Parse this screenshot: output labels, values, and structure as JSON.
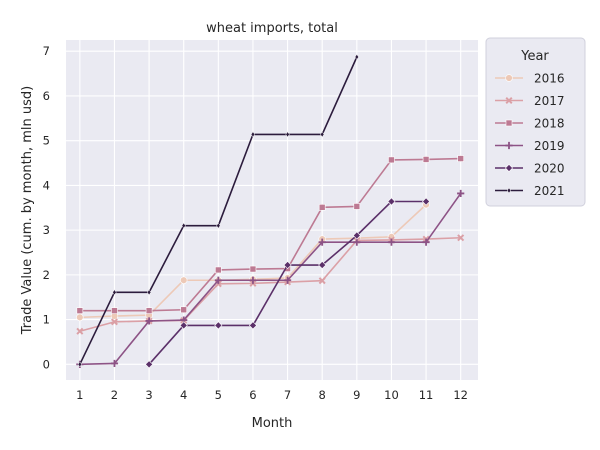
{
  "chart_data": {
    "type": "line",
    "title": "wheat imports, total",
    "xlabel": "Month",
    "ylabel": "Trade Value (cum. by month, mln usd)",
    "x_ticks": [
      1,
      2,
      3,
      4,
      5,
      6,
      7,
      8,
      9,
      10,
      11,
      12
    ],
    "y_ticks": [
      0,
      1,
      2,
      3,
      4,
      5,
      6,
      7
    ],
    "xlim": [
      0.6,
      12.5
    ],
    "ylim": [
      -0.35,
      7.25
    ],
    "grid": true,
    "legend": {
      "title": "Year",
      "placement": "outside-top-right"
    },
    "series": [
      {
        "name": "2016",
        "color": "#edc9b7",
        "marker": "circle",
        "x": [
          1,
          2,
          3,
          4,
          5,
          6,
          7,
          8,
          9,
          10,
          11
        ],
        "y": [
          1.05,
          1.08,
          1.1,
          1.88,
          1.88,
          1.9,
          1.93,
          2.8,
          2.82,
          2.85,
          3.57
        ]
      },
      {
        "name": "2017",
        "color": "#dba0a6",
        "marker": "x",
        "x": [
          1,
          2,
          3,
          4,
          5,
          6,
          7,
          8,
          9,
          10,
          11,
          12
        ],
        "y": [
          0.74,
          0.95,
          0.97,
          0.98,
          1.8,
          1.81,
          1.84,
          1.87,
          2.77,
          2.78,
          2.8,
          2.83
        ]
      },
      {
        "name": "2018",
        "color": "#bd7a93",
        "marker": "square",
        "x": [
          1,
          2,
          3,
          4,
          5,
          6,
          7,
          8,
          9,
          10,
          11,
          12
        ],
        "y": [
          1.2,
          1.2,
          1.2,
          1.22,
          2.11,
          2.13,
          2.14,
          3.51,
          3.53,
          4.57,
          4.58,
          4.6
        ]
      },
      {
        "name": "2019",
        "color": "#8d5386",
        "marker": "plus",
        "x": [
          1,
          2,
          3,
          4,
          5,
          6,
          7,
          8,
          9,
          10,
          11,
          12
        ],
        "y": [
          0.0,
          0.02,
          0.97,
          0.99,
          1.88,
          1.88,
          1.88,
          2.73,
          2.73,
          2.73,
          2.73,
          3.82
        ]
      },
      {
        "name": "2020",
        "color": "#5b3069",
        "marker": "diamond",
        "x": [
          3,
          4,
          5,
          6,
          7,
          8,
          9,
          10,
          11
        ],
        "y": [
          0.0,
          0.87,
          0.87,
          0.87,
          2.22,
          2.22,
          2.88,
          3.64,
          3.64
        ]
      },
      {
        "name": "2021",
        "color": "#2c1c3d",
        "marker": "diamond-small",
        "x": [
          1,
          2,
          3,
          4,
          5,
          6,
          7,
          8,
          9
        ],
        "y": [
          0.0,
          1.61,
          1.61,
          3.1,
          3.1,
          5.14,
          5.14,
          5.14,
          6.87
        ]
      }
    ]
  }
}
